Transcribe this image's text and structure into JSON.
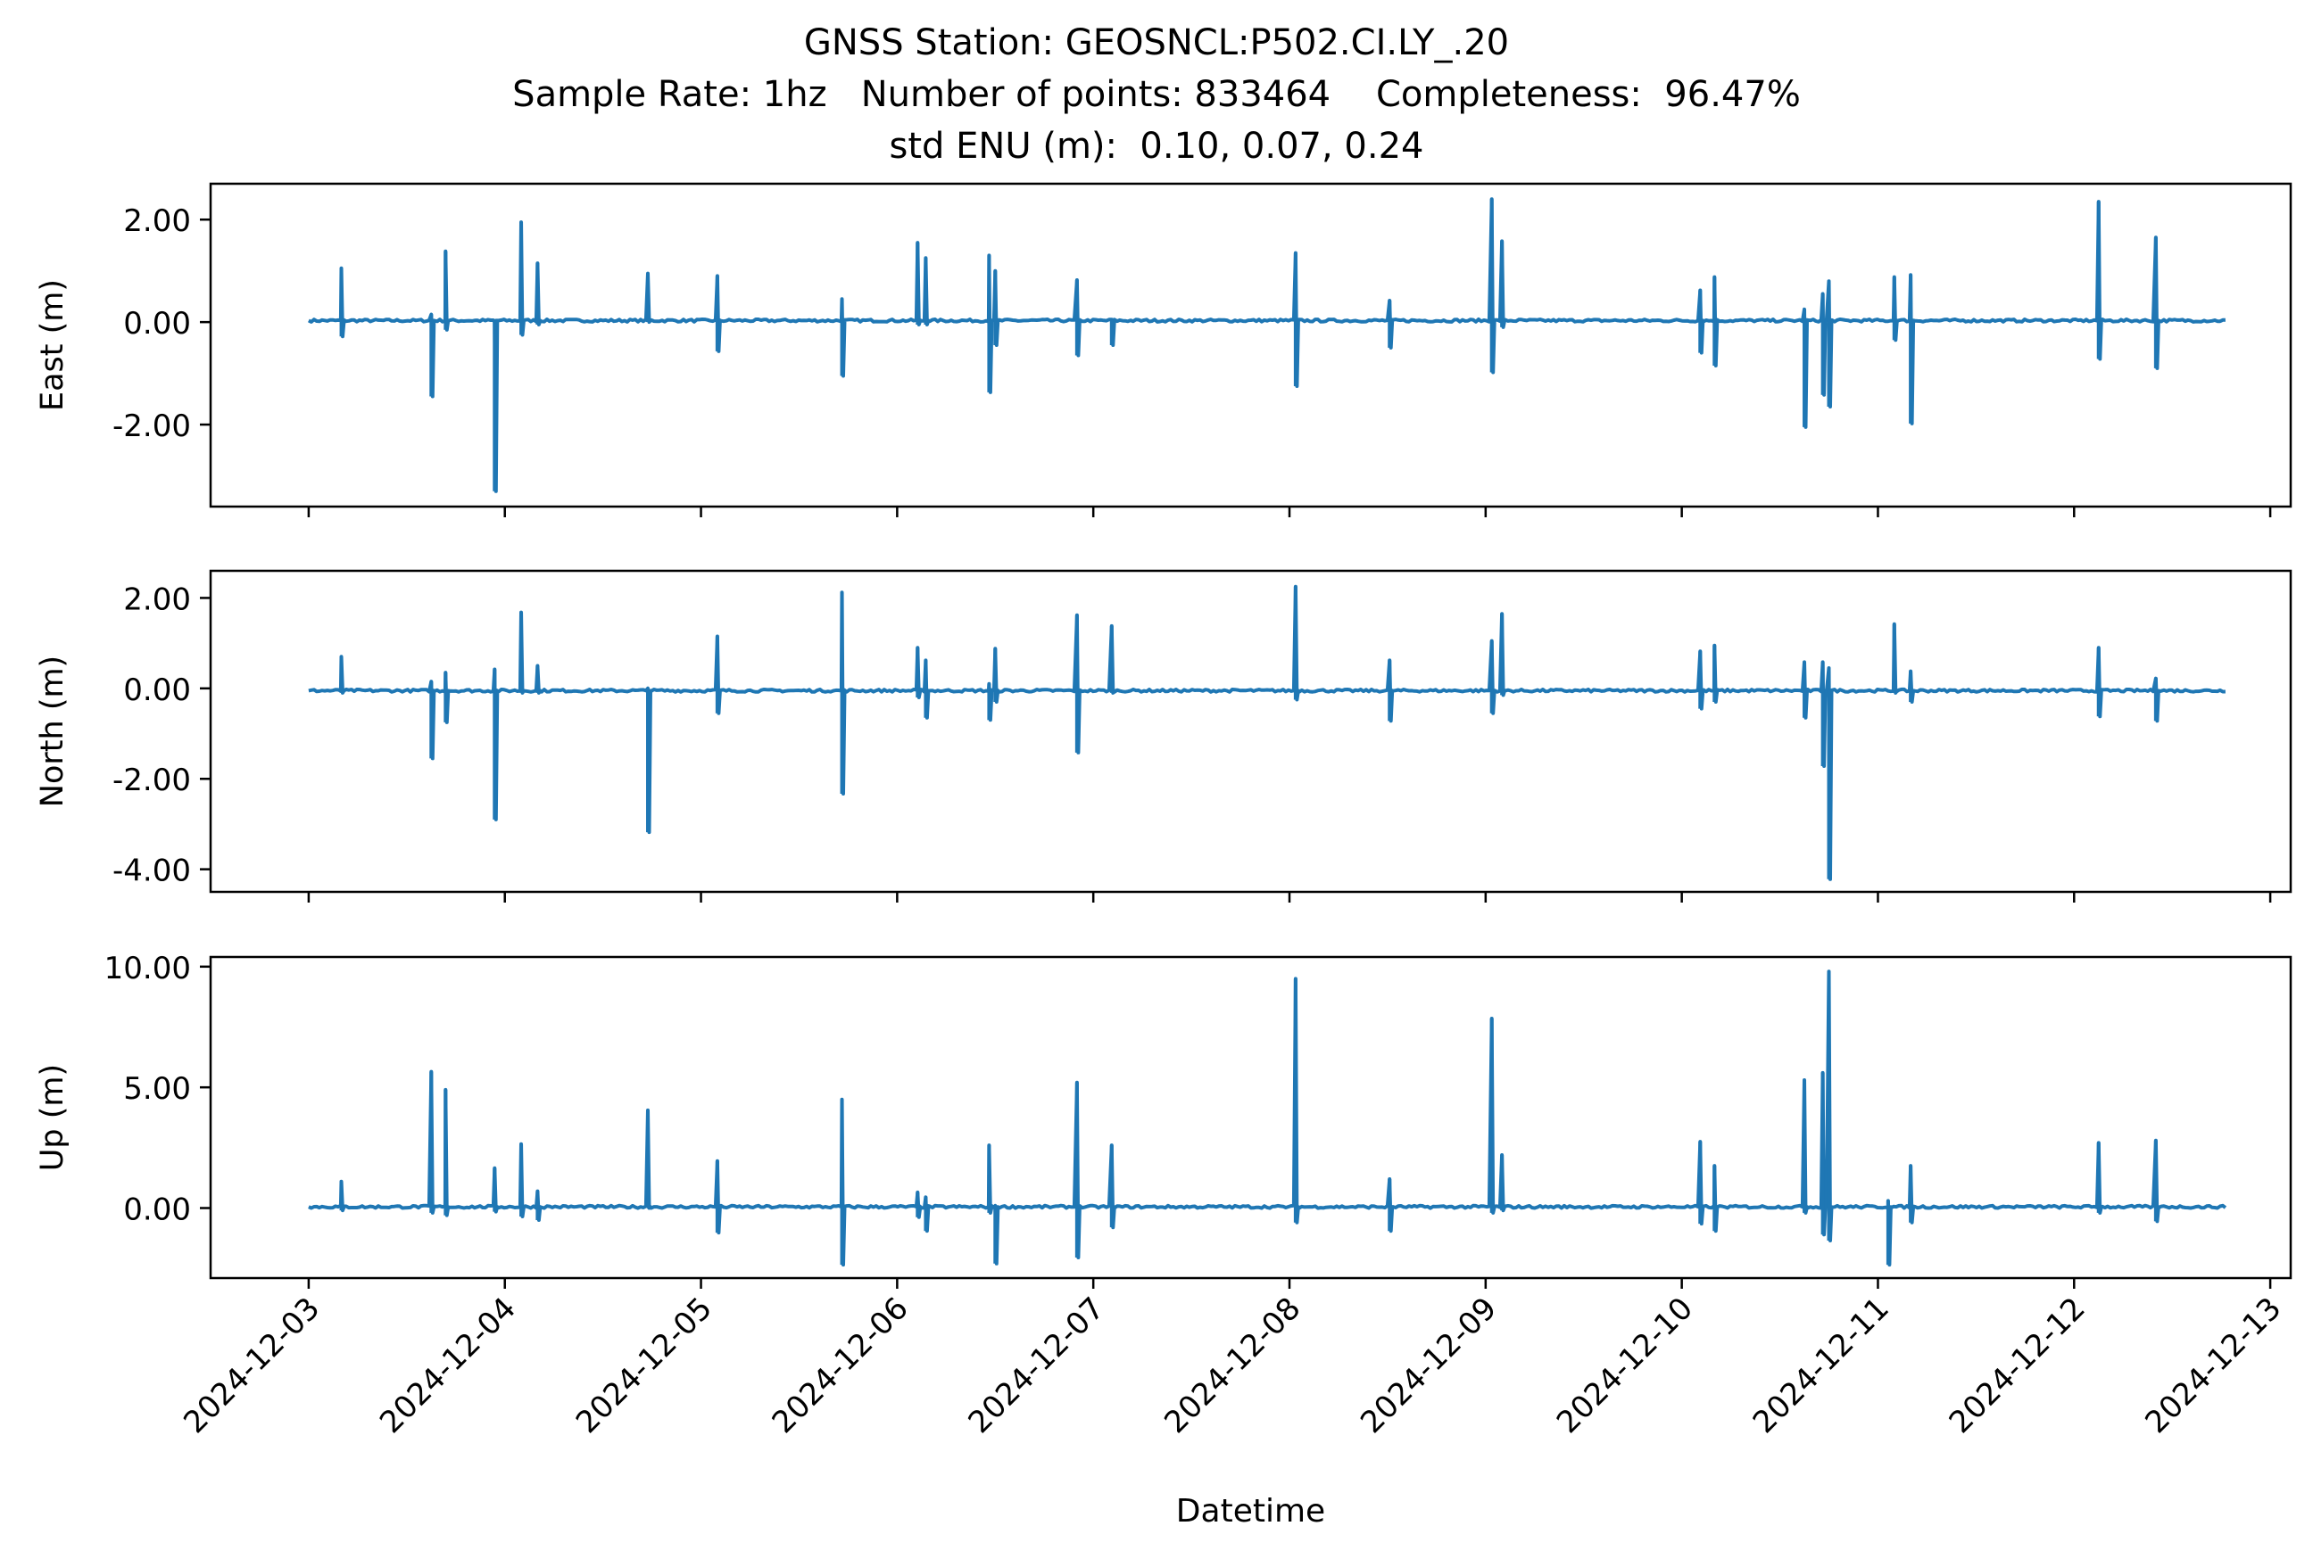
{
  "title": {
    "line1": "GNSS Station: GEOSNCL:P502.CI.LY_.20",
    "line2": "Sample Rate: 1hz   Number of points: 833464    Completeness:  96.47%",
    "line3": "std ENU (m):  0.10, 0.07, 0.24"
  },
  "colors": {
    "series": "#1f77b4",
    "axes": "#000000",
    "background": "#ffffff"
  },
  "chart_data": [
    {
      "type": "line",
      "ylabel": "East (m)",
      "ylim": [
        -3.6,
        2.7
      ],
      "yticks": [
        2.0,
        0.0,
        -2.0
      ],
      "ytick_labels": [
        "2.00",
        "0.00",
        "-2.00"
      ],
      "grid": false,
      "baseline": 0.03,
      "spikes": [
        {
          "x": "2024-12-03T04:00",
          "max": 1.05,
          "min": -0.28
        },
        {
          "x": "2024-12-03T15:00",
          "max": 0.15,
          "min": -1.45
        },
        {
          "x": "2024-12-03T16:45",
          "max": 1.38,
          "min": -0.15
        },
        {
          "x": "2024-12-03T22:45",
          "max": 0.0,
          "min": -3.3
        },
        {
          "x": "2024-12-04T02:00",
          "max": 1.95,
          "min": -0.25
        },
        {
          "x": "2024-12-04T04:00",
          "max": 1.15,
          "min": -0.05
        },
        {
          "x": "2024-12-04T17:30",
          "max": 0.95,
          "min": 0.0
        },
        {
          "x": "2024-12-05T02:00",
          "max": 0.9,
          "min": -0.57
        },
        {
          "x": "2024-12-05T17:15",
          "max": 0.45,
          "min": -1.05
        },
        {
          "x": "2024-12-06T02:30",
          "max": 1.55,
          "min": -0.05
        },
        {
          "x": "2024-12-06T03:30",
          "max": 1.25,
          "min": -0.05
        },
        {
          "x": "2024-12-06T11:15",
          "max": 1.3,
          "min": -1.37
        },
        {
          "x": "2024-12-06T12:00",
          "max": 1.0,
          "min": -0.45
        },
        {
          "x": "2024-12-06T22:00",
          "max": 0.82,
          "min": -0.65
        },
        {
          "x": "2024-12-07T02:15",
          "max": 0.05,
          "min": -0.45
        },
        {
          "x": "2024-12-08T00:45",
          "max": 1.35,
          "min": -1.25
        },
        {
          "x": "2024-12-08T12:15",
          "max": 0.42,
          "min": -0.5
        },
        {
          "x": "2024-12-09T00:45",
          "max": 2.4,
          "min": -0.98
        },
        {
          "x": "2024-12-09T02:00",
          "max": 1.58,
          "min": -0.1
        },
        {
          "x": "2024-12-10T02:15",
          "max": 0.62,
          "min": -0.6
        },
        {
          "x": "2024-12-10T04:00",
          "max": 0.88,
          "min": -0.85
        },
        {
          "x": "2024-12-10T15:00",
          "max": 0.25,
          "min": -2.05
        },
        {
          "x": "2024-12-10T17:15",
          "max": 0.55,
          "min": -1.42
        },
        {
          "x": "2024-12-10T18:00",
          "max": 0.8,
          "min": -1.65
        },
        {
          "x": "2024-12-11T02:00",
          "max": 0.88,
          "min": -0.35
        },
        {
          "x": "2024-12-11T04:00",
          "max": 0.92,
          "min": -1.98
        },
        {
          "x": "2024-12-12T03:00",
          "max": 2.35,
          "min": -0.72
        },
        {
          "x": "2024-12-12T10:00",
          "max": 1.65,
          "min": -0.9
        }
      ]
    },
    {
      "type": "line",
      "ylabel": "North (m)",
      "ylim": [
        -4.5,
        2.6
      ],
      "yticks": [
        2.0,
        0.0,
        -2.0,
        -4.0
      ],
      "ytick_labels": [
        "2.00",
        "0.00",
        "-2.00",
        "-4.00"
      ],
      "grid": false,
      "baseline": -0.05,
      "spikes": [
        {
          "x": "2024-12-03T04:00",
          "max": 0.7,
          "min": -0.1
        },
        {
          "x": "2024-12-03T15:00",
          "max": 0.15,
          "min": -1.55
        },
        {
          "x": "2024-12-03T16:45",
          "max": 0.35,
          "min": -0.75
        },
        {
          "x": "2024-12-03T22:45",
          "max": 0.42,
          "min": -2.9
        },
        {
          "x": "2024-12-04T02:00",
          "max": 1.68,
          "min": -0.1
        },
        {
          "x": "2024-12-04T04:00",
          "max": 0.5,
          "min": -0.1
        },
        {
          "x": "2024-12-04T17:30",
          "max": 0.0,
          "min": -3.18
        },
        {
          "x": "2024-12-05T02:00",
          "max": 1.15,
          "min": -0.55
        },
        {
          "x": "2024-12-05T17:15",
          "max": 2.12,
          "min": -2.33
        },
        {
          "x": "2024-12-06T02:30",
          "max": 0.9,
          "min": -0.2
        },
        {
          "x": "2024-12-06T03:30",
          "max": 0.62,
          "min": -0.65
        },
        {
          "x": "2024-12-06T11:15",
          "max": 0.1,
          "min": -0.7
        },
        {
          "x": "2024-12-06T12:00",
          "max": 0.88,
          "min": -0.3
        },
        {
          "x": "2024-12-06T22:00",
          "max": 1.62,
          "min": -1.42
        },
        {
          "x": "2024-12-07T02:15",
          "max": 1.38,
          "min": -0.1
        },
        {
          "x": "2024-12-08T00:45",
          "max": 2.25,
          "min": -0.25
        },
        {
          "x": "2024-12-08T12:15",
          "max": 0.62,
          "min": -0.72
        },
        {
          "x": "2024-12-09T00:45",
          "max": 1.05,
          "min": -0.55
        },
        {
          "x": "2024-12-09T02:00",
          "max": 1.65,
          "min": -0.15
        },
        {
          "x": "2024-12-10T02:15",
          "max": 0.82,
          "min": -0.45
        },
        {
          "x": "2024-12-10T04:00",
          "max": 0.95,
          "min": -0.3
        },
        {
          "x": "2024-12-10T15:00",
          "max": 0.58,
          "min": -0.65
        },
        {
          "x": "2024-12-10T17:15",
          "max": 0.58,
          "min": -1.72
        },
        {
          "x": "2024-12-10T18:00",
          "max": 0.45,
          "min": -4.22
        },
        {
          "x": "2024-12-11T02:00",
          "max": 1.42,
          "min": -0.1
        },
        {
          "x": "2024-12-11T04:00",
          "max": 0.38,
          "min": -0.3
        },
        {
          "x": "2024-12-12T03:00",
          "max": 0.9,
          "min": -0.62
        },
        {
          "x": "2024-12-12T10:00",
          "max": 0.22,
          "min": -0.72
        }
      ]
    },
    {
      "type": "line",
      "ylabel": "Up (m)",
      "ylim": [
        -2.9,
        10.4
      ],
      "yticks": [
        10.0,
        5.0,
        0.0
      ],
      "ytick_labels": [
        "10.00",
        "5.00",
        "0.00"
      ],
      "xlabel": "Datetime",
      "xlim": [
        "2024-12-02T12:00",
        "2024-12-13T02:30"
      ],
      "xticks": [
        "2024-12-03",
        "2024-12-04",
        "2024-12-05",
        "2024-12-06",
        "2024-12-07",
        "2024-12-08",
        "2024-12-09",
        "2024-12-10",
        "2024-12-11",
        "2024-12-12",
        "2024-12-13"
      ],
      "grid": false,
      "baseline": 0.05,
      "spikes": [
        {
          "x": "2024-12-03T04:00",
          "max": 1.1,
          "min": -0.1
        },
        {
          "x": "2024-12-03T15:00",
          "max": 5.65,
          "min": -0.2
        },
        {
          "x": "2024-12-03T16:45",
          "max": 4.9,
          "min": -0.3
        },
        {
          "x": "2024-12-03T22:45",
          "max": 1.65,
          "min": -0.15
        },
        {
          "x": "2024-12-04T02:00",
          "max": 2.65,
          "min": -0.35
        },
        {
          "x": "2024-12-04T04:00",
          "max": 0.7,
          "min": -0.5
        },
        {
          "x": "2024-12-04T17:30",
          "max": 4.05,
          "min": 0.0
        },
        {
          "x": "2024-12-05T02:00",
          "max": 1.95,
          "min": -1.02
        },
        {
          "x": "2024-12-05T17:15",
          "max": 4.5,
          "min": -2.35
        },
        {
          "x": "2024-12-06T02:30",
          "max": 0.65,
          "min": -0.38
        },
        {
          "x": "2024-12-06T03:30",
          "max": 0.45,
          "min": -0.95
        },
        {
          "x": "2024-12-06T11:15",
          "max": 2.6,
          "min": -0.2
        },
        {
          "x": "2024-12-06T12:00",
          "max": 0.1,
          "min": -2.3
        },
        {
          "x": "2024-12-06T22:00",
          "max": 5.2,
          "min": -2.05
        },
        {
          "x": "2024-12-07T02:15",
          "max": 2.6,
          "min": -0.8
        },
        {
          "x": "2024-12-08T00:45",
          "max": 9.5,
          "min": -0.6
        },
        {
          "x": "2024-12-08T12:15",
          "max": 1.2,
          "min": -0.95
        },
        {
          "x": "2024-12-09T00:45",
          "max": 7.85,
          "min": -0.2
        },
        {
          "x": "2024-12-09T02:00",
          "max": 2.2,
          "min": -0.1
        },
        {
          "x": "2024-12-10T02:15",
          "max": 2.75,
          "min": -0.65
        },
        {
          "x": "2024-12-10T04:00",
          "max": 1.75,
          "min": -0.95
        },
        {
          "x": "2024-12-10T15:00",
          "max": 5.3,
          "min": -0.2
        },
        {
          "x": "2024-12-10T17:15",
          "max": 5.6,
          "min": -1.1
        },
        {
          "x": "2024-12-10T18:00",
          "max": 9.8,
          "min": -1.35
        },
        {
          "x": "2024-12-11T01:15",
          "max": 0.3,
          "min": -2.35
        },
        {
          "x": "2024-12-11T04:00",
          "max": 1.75,
          "min": -0.6
        },
        {
          "x": "2024-12-12T03:00",
          "max": 2.7,
          "min": -0.2
        },
        {
          "x": "2024-12-12T10:00",
          "max": 2.8,
          "min": -0.55
        }
      ]
    }
  ]
}
